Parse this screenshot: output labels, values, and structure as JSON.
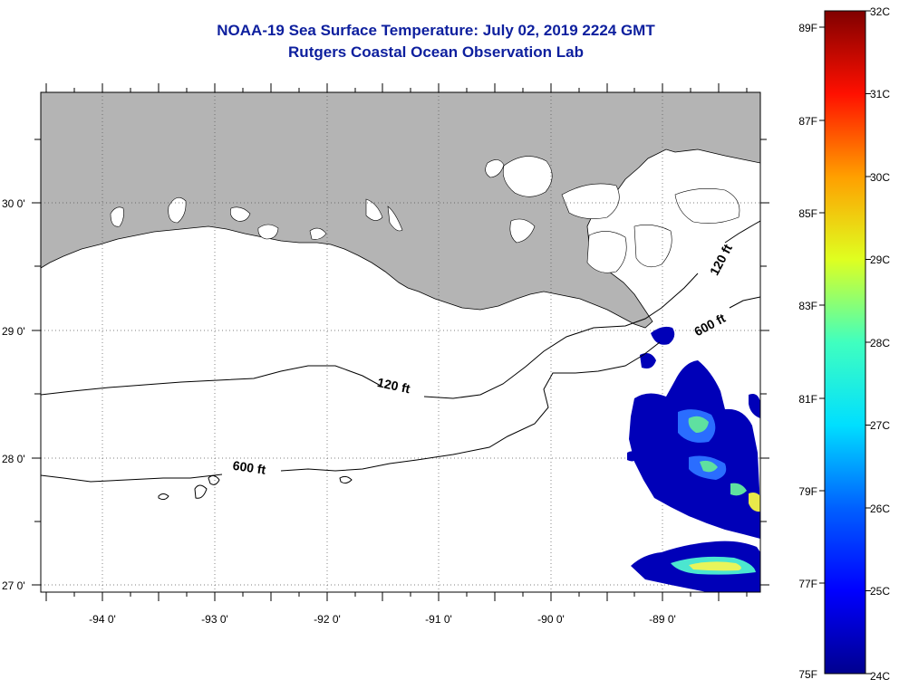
{
  "title": {
    "line1": "NOAA-19 Sea Surface Temperature:  July 02, 2019 2224 GMT",
    "line2": "Rutgers Coastal Ocean Observation Lab"
  },
  "axes": {
    "lon_labels": [
      "-94 0'",
      "-93 0'",
      "-92 0'",
      "-91 0'",
      "-90 0'",
      "-89 0'"
    ],
    "lat_labels": [
      "30 0'",
      "29 0'",
      "28 0'",
      "27 0'"
    ],
    "lon_range": [
      -94.5,
      -88.1
    ],
    "lat_range": [
      26.95,
      30.85
    ]
  },
  "contours": {
    "shelf_120": "120 ft",
    "shelf_600": "600 ft",
    "delta_120": "120 ft",
    "delta_600": "600 ft"
  },
  "colorbar": {
    "celsius": [
      "32C",
      "31C",
      "30C",
      "29C",
      "28C",
      "27C",
      "26C",
      "25C",
      "24C"
    ],
    "fahrenheit": [
      "89F",
      "87F",
      "85F",
      "83F",
      "81F",
      "79F",
      "77F",
      "75F"
    ],
    "range_c": [
      24,
      32
    ]
  },
  "colors": {
    "land": "#b4b4b4",
    "title": "#0d1f9e",
    "no_data": "#ffffff"
  }
}
